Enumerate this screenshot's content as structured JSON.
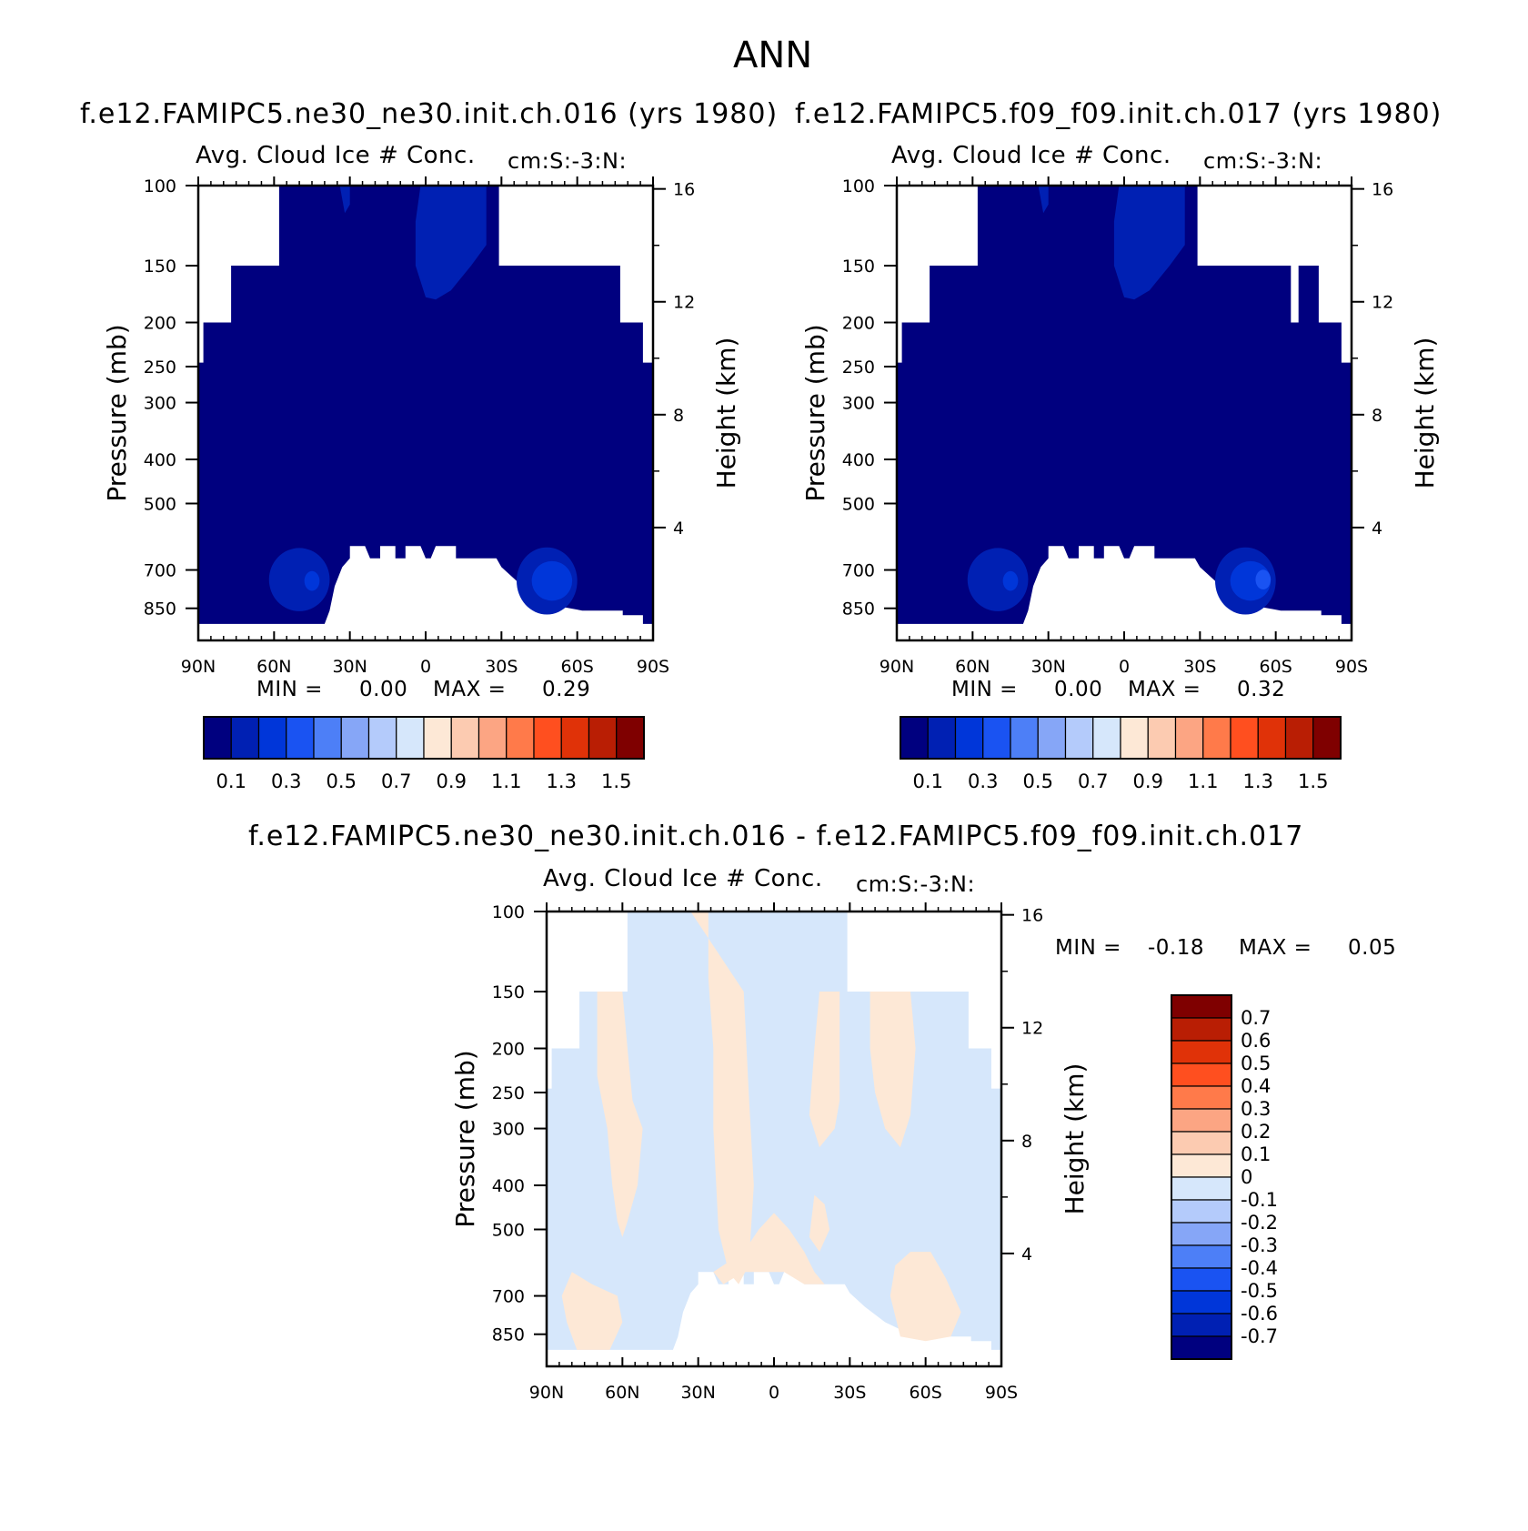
{
  "page_title": "ANN",
  "colors": {
    "abs_scale": [
      "#00007f",
      "#0020b3",
      "#0036d9",
      "#1a53f2",
      "#4d7ff7",
      "#86a6f7",
      "#b4cbfb",
      "#d6e7fb",
      "#fde8d6",
      "#fccbb1",
      "#fca583",
      "#ff7a4a",
      "#ff4f1f",
      "#e03208",
      "#b91e04",
      "#7f0000"
    ],
    "diff_scale": [
      "#00007f",
      "#0020b3",
      "#0036d9",
      "#1a53f2",
      "#4d7ff7",
      "#86a6f7",
      "#b4cbfb",
      "#d6e7fb",
      "#fde8d6",
      "#fccbb1",
      "#fca583",
      "#ff7a4a",
      "#ff4f1f",
      "#e03208",
      "#b91e04",
      "#7f0000"
    ]
  },
  "chart_data": [
    {
      "type": "heatmap",
      "case_title": "f.e12.FAMIPC5.ne30_ne30.init.ch.016 (yrs 1980)",
      "title": "Avg. Cloud Ice # Conc.",
      "units": "cm:S:-3:N:",
      "ylabel": "Pressure (mb)",
      "ylabel_right": "Height (km)",
      "x_ticks": [
        "90N",
        "60N",
        "30N",
        "0",
        "30S",
        "60S",
        "90S"
      ],
      "x_range": [
        90,
        -90
      ],
      "y_ticks": [
        "100",
        "150",
        "200",
        "250",
        "300",
        "400",
        "500",
        "700",
        "850"
      ],
      "y_range": [
        100,
        1000
      ],
      "height_ticks": [
        "16",
        "12",
        "8",
        "4"
      ],
      "min_label": "MIN =",
      "min_value": "0.00",
      "max_label": "MAX =",
      "max_value": "0.29",
      "colorbar_labels": [
        "0.1",
        "0.3",
        "0.5",
        "0.7",
        "0.9",
        "1.1",
        "1.3",
        "1.5"
      ]
    },
    {
      "type": "heatmap",
      "case_title": "f.e12.FAMIPC5.f09_f09.init.ch.017 (yrs 1980)",
      "title": "Avg. Cloud Ice # Conc.",
      "units": "cm:S:-3:N:",
      "ylabel": "Pressure (mb)",
      "ylabel_right": "Height (km)",
      "x_ticks": [
        "90N",
        "60N",
        "30N",
        "0",
        "30S",
        "60S",
        "90S"
      ],
      "x_range": [
        90,
        -90
      ],
      "y_ticks": [
        "100",
        "150",
        "200",
        "250",
        "300",
        "400",
        "500",
        "700",
        "850"
      ],
      "y_range": [
        100,
        1000
      ],
      "height_ticks": [
        "16",
        "12",
        "8",
        "4"
      ],
      "min_label": "MIN =",
      "min_value": "0.00",
      "max_label": "MAX =",
      "max_value": "0.32",
      "colorbar_labels": [
        "0.1",
        "0.3",
        "0.5",
        "0.7",
        "0.9",
        "1.1",
        "1.3",
        "1.5"
      ]
    },
    {
      "type": "heatmap",
      "case_title": "f.e12.FAMIPC5.ne30_ne30.init.ch.016 - f.e12.FAMIPC5.f09_f09.init.ch.017",
      "title": "Avg. Cloud Ice # Conc.",
      "units": "cm:S:-3:N:",
      "ylabel": "Pressure (mb)",
      "ylabel_right": "Height (km)",
      "x_ticks": [
        "90N",
        "60N",
        "30N",
        "0",
        "30S",
        "60S",
        "90S"
      ],
      "x_range": [
        90,
        -90
      ],
      "y_ticks": [
        "100",
        "150",
        "200",
        "250",
        "300",
        "400",
        "500",
        "700",
        "850"
      ],
      "y_range": [
        100,
        1000
      ],
      "height_ticks": [
        "16",
        "12",
        "8",
        "4"
      ],
      "min_label": "MIN =",
      "min_value": "-0.18",
      "max_label": "MAX =",
      "max_value": "0.05",
      "colorbar_labels": [
        "0.7",
        "0.6",
        "0.5",
        "0.4",
        "0.3",
        "0.2",
        "0.1",
        "0",
        "-0.1",
        "-0.2",
        "-0.3",
        "-0.4",
        "-0.5",
        "-0.6",
        "-0.7"
      ]
    }
  ]
}
